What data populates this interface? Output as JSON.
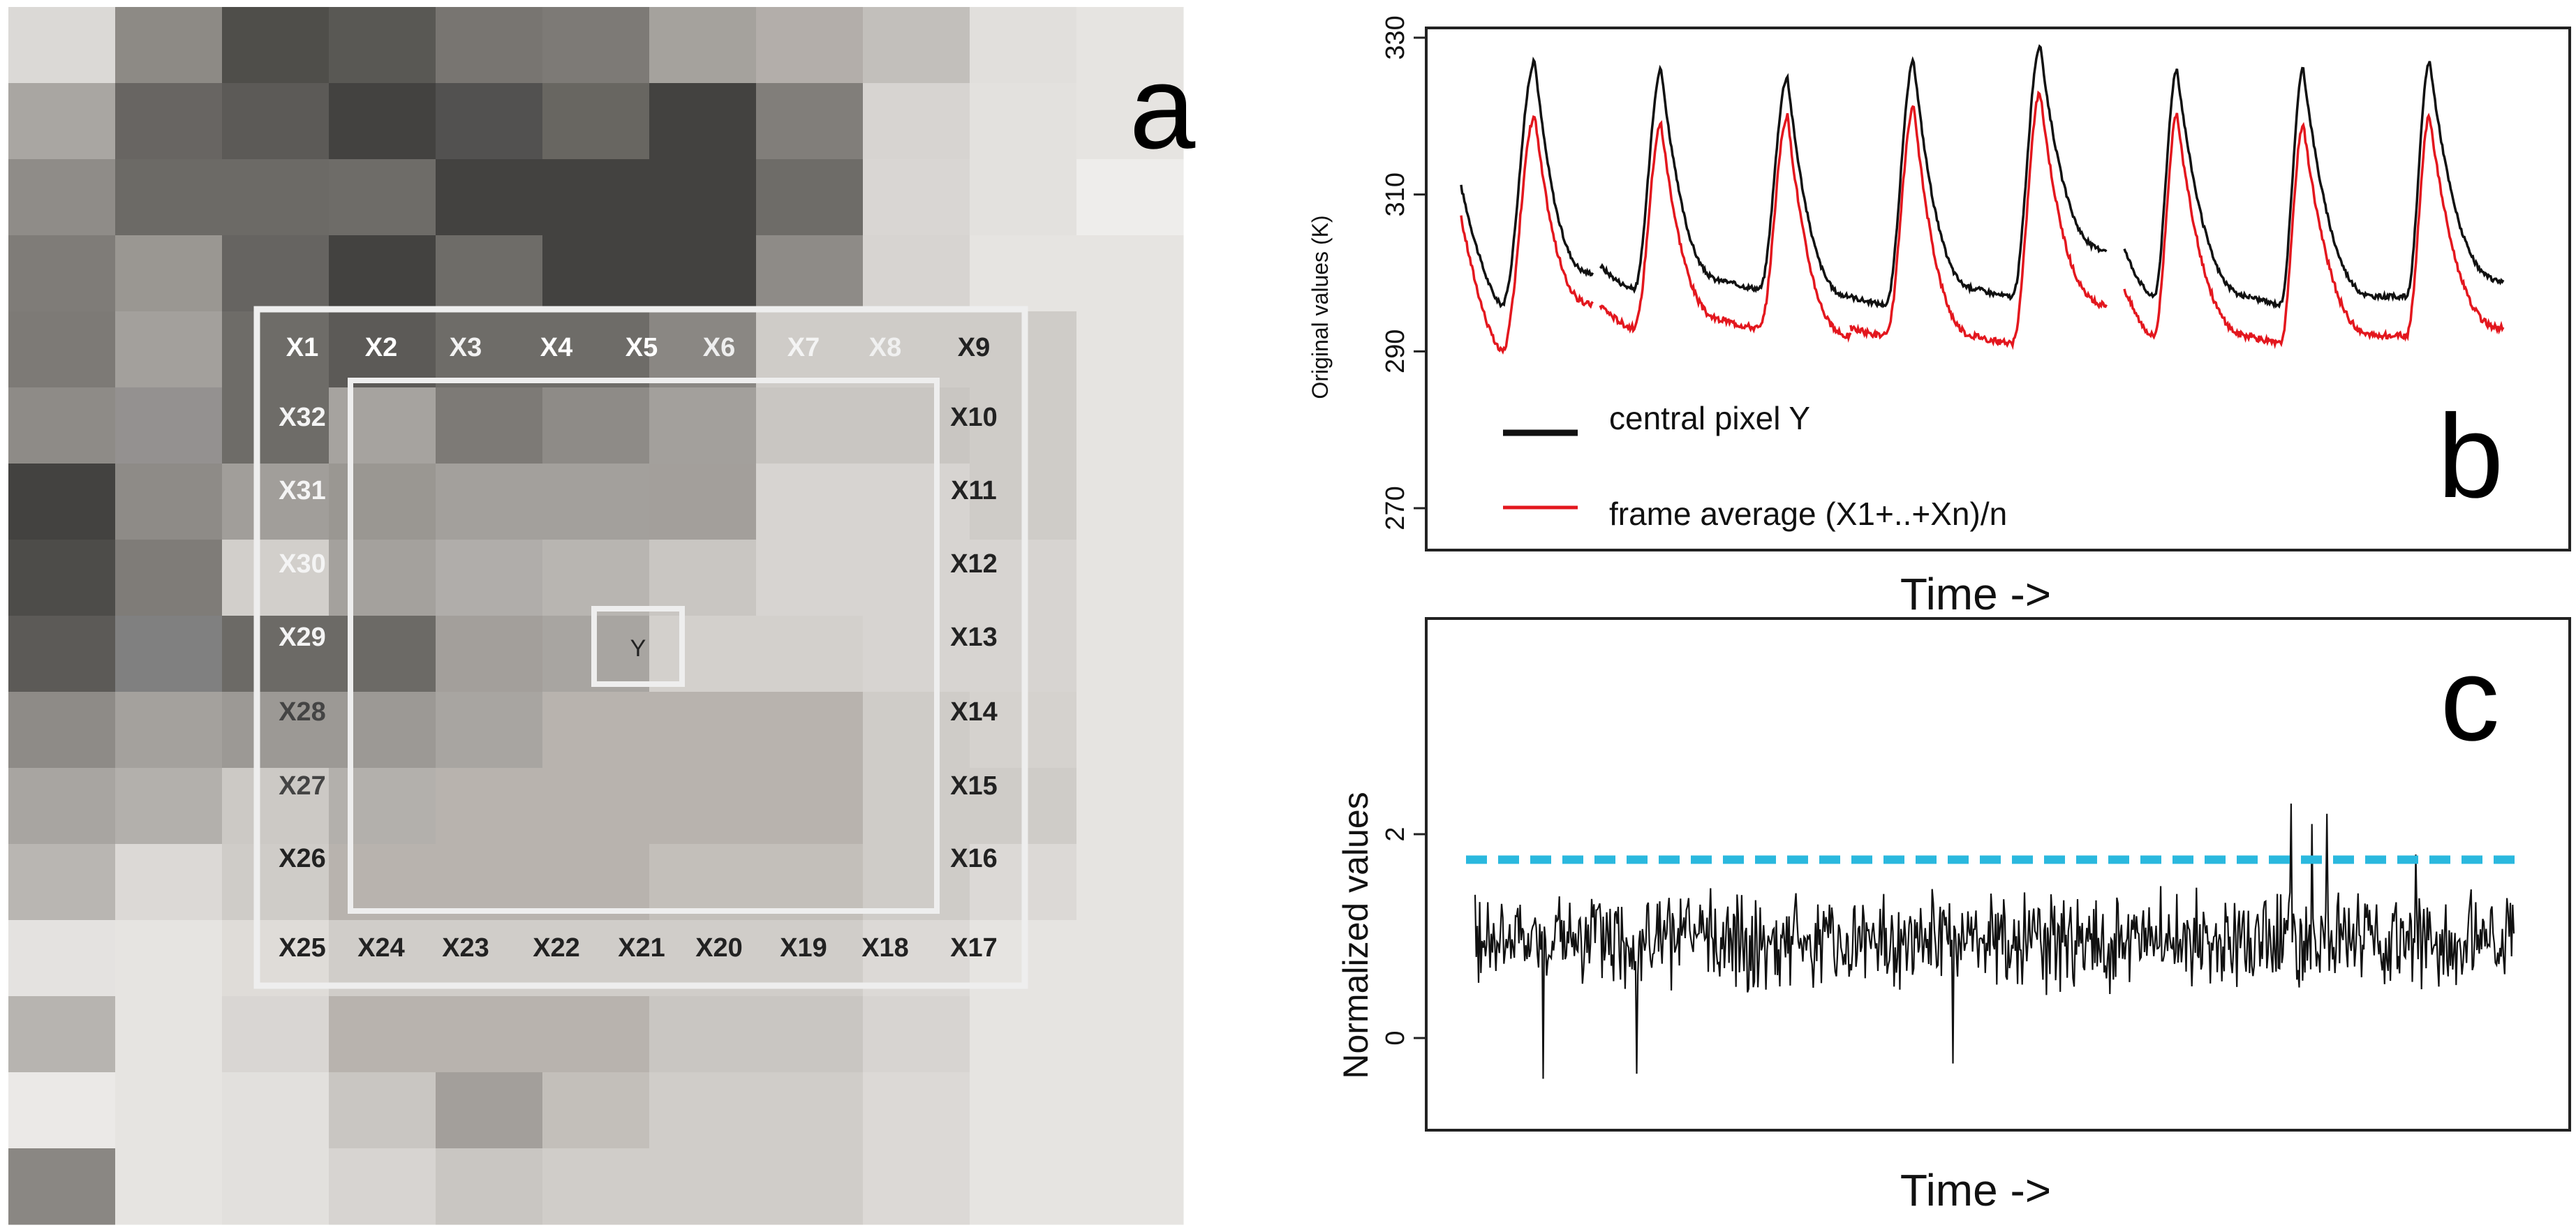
{
  "panel_a": {
    "label": "a",
    "grid_rows": [
      "dbd9d6,8d8a85,4f4e4a,595854,787571,7d7a76,a5a29d,b3aeaa,c2bfbb,e1dfdc,e6e4e1",
      "a9a6a2,686562,5c5a57,434240,525150,686661,434240,817e7a,d7d4d1,e3e1de,e6e4e1",
      "8f8c88,6c6a66,6c6a66,6e6c68,434240,434240,434240,6e6c68,d9d6d3,e3e1de,eeedeb",
      "7f7c78,9a9792,666461,434240,6e6c68,434240,434240,8e8b87,d7d4d1,e6e4e1,e6e4e1",
      "7d7a76,a3a09c,6e6c68,5c5a57,6e6c68,6e6c68,8a8783,cfccc8,cfccc8,cfccc8,e6e4e1",
      "8e8b87,949190,6e6c68,a6a39f,7d7a76,8e8b87,a3a09c,c9c6c2,c9c6c2,cfccc8,e6e4e1",
      "434240,8e8b87,a19e9a,9a9792,a3a09c,a3a09c,a39f9b,d7d4d1,d7d4d1,cfccc8,e6e4e1",
      "4d4c49,7f7c78,d2cfcb,a4a19d,b0adaa,b8b5b1,c9c6c2,d7d4d1,d7d4d1,d7d4d1,e6e4e1",
      "5c5a57,808080,6c6a66,6c6a66,a39f9b,a8a5a1,d3d0cc,d3d0cc,d7d4d1,d7d4d1,e6e4e1",
      "8e8b87,a4a19d,9c9995,9c9995,a8a5a1,b8b3ae,b8b3ae,b8b3ae,cfccc8,d5d2ce,e6e4e1",
      "a8a5a1,b3b0ac,ccc9c5,b3b0ac,b8b3ae,b8b3ae,b8b3ae,b8b3ae,cfccc8,cfccc8,e6e4e1",
      "b9b6b2,dcd9d6,cfccc8,b8b3ae,b8b3ae,b8b3ae,c3bfba,c3bfba,cfccc8,dcd9d6,e6e4e1",
      "e4e2e0,e6e4e1,dfdcd8,d0cdc9,d0cdc9,d0cdc9,d0cdc9,d0cdc9,dcd9d6,e6e4e1,e6e4e1",
      "b7b4b0,e6e4e1,d9d6d3,b8b3ae,b8b3ae,b8b3ae,c9c6c2,c9c6c2,d7d4d1,e6e4e1,e6e4e1",
      "ebe9e7,e6e4e1,e2e0dd,c9c6c2,a39f9b,c3bfba,d0cdc9,d0cdc9,dcd9d6,e6e4e1,e6e4e1",
      "8a8783,e6e4e1,e2e0dd,d7d4d1,c9c6c2,d0cdc9,d0cdc9,d0cdc9,dcd9d6,e6e4e1,e6e4e1"
    ],
    "pixel_labels": [
      "X1",
      "X2",
      "X3",
      "X4",
      "X5",
      "X6",
      "X7",
      "X8",
      "X9",
      "X10",
      "X11",
      "X12",
      "X13",
      "X14",
      "X15",
      "X16",
      "X17",
      "X18",
      "X19",
      "X20",
      "X21",
      "X22",
      "X23",
      "X24",
      "X25",
      "X26",
      "X27",
      "X28",
      "X29",
      "X30",
      "X31",
      "X32"
    ],
    "center_label": "Y"
  },
  "chart_data": [
    {
      "panel": "b",
      "type": "line",
      "ylabel": "Original values (K)",
      "xlabel": "Time ->",
      "ylim": [
        270,
        330
      ],
      "yticks": [
        270,
        290,
        310,
        330
      ],
      "legend": [
        "central pixel Y",
        "frame average (X1+..+Xn)/n"
      ],
      "legend_position": "bottom-left",
      "x_range": [
        0,
        100
      ],
      "cycles": [
        {
          "start": 0,
          "end": 12.5,
          "peak_t": 7,
          "pre": 311,
          "trough": 296,
          "peak": 327,
          "end_value": 300,
          "avg_pre": 307,
          "avg_trough": 290,
          "avg_peak": 320,
          "avg_end": 296
        },
        {
          "start": 13.2,
          "end": 25,
          "peak_t": 19,
          "pre": 301,
          "trough": 298,
          "peak": 326,
          "end_value": 299,
          "avg_pre": 296,
          "avg_trough": 293,
          "avg_peak": 319,
          "avg_end": 294
        },
        {
          "start": 25,
          "end": 37,
          "peak_t": 31,
          "pre": 299,
          "trough": 298,
          "peak": 325,
          "end_value": 297,
          "avg_pre": 294,
          "avg_trough": 293,
          "avg_peak": 320,
          "avg_end": 292
        },
        {
          "start": 37,
          "end": 49,
          "peak_t": 43,
          "pre": 297,
          "trough": 296,
          "peak": 327,
          "end_value": 298,
          "avg_pre": 293,
          "avg_trough": 292,
          "avg_peak": 321,
          "avg_end": 292
        },
        {
          "start": 49,
          "end": 61.3,
          "peak_t": 55,
          "pre": 298,
          "trough": 297,
          "peak": 329,
          "end_value": 303,
          "avg_pre": 292,
          "avg_trough": 291,
          "avg_peak": 323,
          "avg_end": 296
        },
        {
          "start": 63,
          "end": 75,
          "peak_t": 68,
          "pre": 303,
          "trough": 297,
          "peak": 326,
          "end_value": 297,
          "avg_pre": 298,
          "avg_trough": 292,
          "avg_peak": 320,
          "avg_end": 292
        },
        {
          "start": 75,
          "end": 87,
          "peak_t": 80,
          "pre": 297,
          "trough": 296,
          "peak": 326,
          "end_value": 297,
          "avg_pre": 292,
          "avg_trough": 291,
          "avg_peak": 319,
          "avg_end": 292
        },
        {
          "start": 87,
          "end": 99,
          "peak_t": 92,
          "pre": 297,
          "trough": 297,
          "peak": 327,
          "end_value": 299,
          "avg_pre": 292,
          "avg_trough": 292,
          "avg_peak": 320,
          "avg_end": 293
        }
      ]
    },
    {
      "panel": "c",
      "type": "line",
      "ylabel": "Normalized values",
      "xlabel": "Time ->",
      "ylim": [
        -0.9,
        3.3
      ],
      "yticks": [
        0,
        2
      ],
      "threshold": 1.75,
      "x_range": [
        0,
        100
      ],
      "series_mean": 0.95,
      "noise_amplitude": 0.55,
      "spikes": [
        {
          "t": 78.5,
          "value": 2.3
        },
        {
          "t": 80.5,
          "value": 2.1
        },
        {
          "t": 82.0,
          "value": 2.2
        },
        {
          "t": 90.5,
          "value": 1.8
        },
        {
          "t": 6.5,
          "value": -0.4
        },
        {
          "t": 15.5,
          "value": -0.35
        },
        {
          "t": 46.0,
          "value": -0.25
        }
      ]
    }
  ],
  "colors": {
    "series_y": "#111111",
    "series_avg": "#e3171e",
    "threshold": "#2ab8de",
    "frame_outline": "#eeeeee",
    "axes": "#222222"
  }
}
